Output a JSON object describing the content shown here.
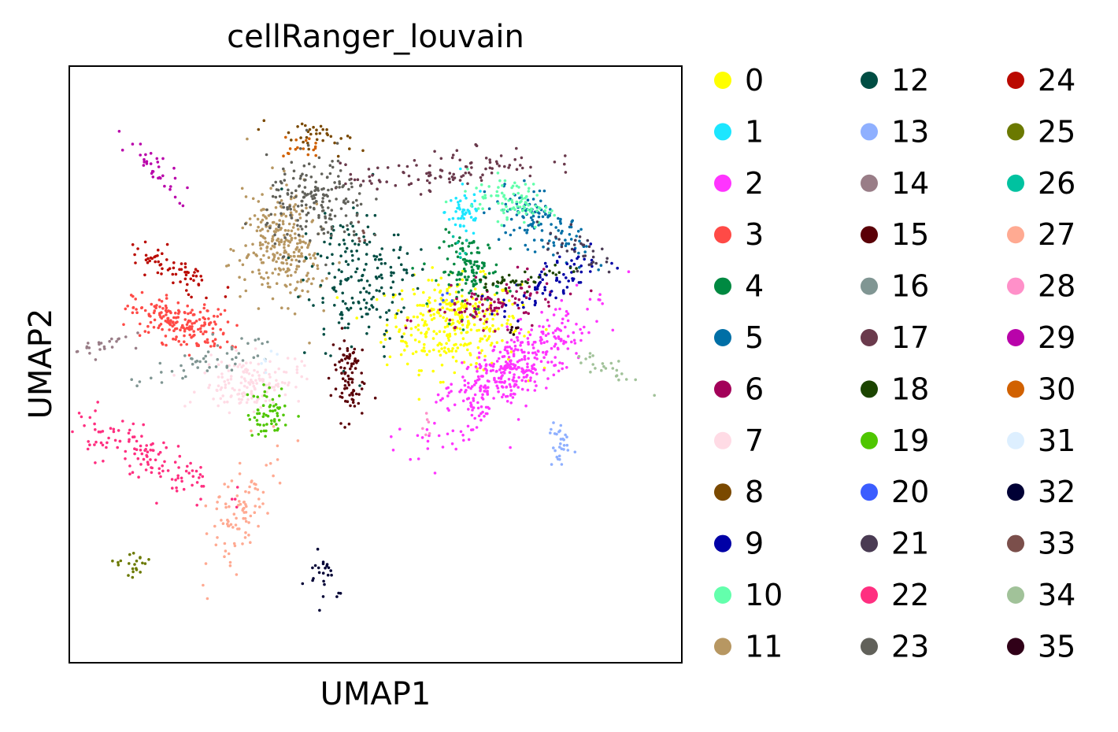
{
  "chart_data": {
    "type": "scatter",
    "title": "cellRanger_louvain",
    "xlabel": "UMAP1",
    "ylabel": "UMAP2",
    "xticks": false,
    "yticks": false,
    "grid": false,
    "legend_placement": "right, 3 columns",
    "categories": [
      "0",
      "1",
      "2",
      "3",
      "4",
      "5",
      "6",
      "7",
      "8",
      "9",
      "10",
      "11",
      "12",
      "13",
      "14",
      "15",
      "16",
      "17",
      "18",
      "19",
      "20",
      "21",
      "22",
      "23",
      "24",
      "25",
      "26",
      "27",
      "28",
      "29",
      "30",
      "31",
      "32",
      "33",
      "34",
      "35"
    ],
    "colors": [
      "#ffff00",
      "#1ce6ff",
      "#ff34ff",
      "#ff4a46",
      "#008941",
      "#006fa6",
      "#a30059",
      "#ffdbe5",
      "#7a4900",
      "#0000a6",
      "#63ffac",
      "#b79762",
      "#004d43",
      "#8fb0ff",
      "#997d87",
      "#5a0007",
      "#809693",
      "#6a3a4c",
      "#1b4400",
      "#4fc601",
      "#3b5dff",
      "#4a3b53",
      "#ff2f80",
      "#61615a",
      "#ba0900",
      "#6b7900",
      "#00c2a0",
      "#ffaa92",
      "#ff90c9",
      "#b903aa",
      "#d16100",
      "#ddefff",
      "#000035",
      "#7b4f4b",
      "#a1c299",
      "#300018"
    ],
    "clusters": [
      {
        "label": "0",
        "center": [
          5.8,
          -0.9
        ],
        "spread": [
          1.2,
          0.6
        ],
        "angle": 0,
        "weight": 0.8
      },
      {
        "label": "1",
        "center": [
          6.2,
          2.1
        ],
        "spread": [
          0.35,
          0.35
        ],
        "angle": 0,
        "weight": 0.12
      },
      {
        "label": "2",
        "center": [
          7.8,
          -2.2
        ],
        "spread": [
          1.6,
          0.45
        ],
        "angle": 28,
        "weight": 0.95
      },
      {
        "label": "3",
        "center": [
          -4.0,
          -0.9
        ],
        "spread": [
          0.9,
          0.3
        ],
        "angle": -10,
        "weight": 0.45
      },
      {
        "label": "4",
        "center": [
          6.4,
          0.5
        ],
        "spread": [
          0.55,
          0.5
        ],
        "angle": 0,
        "weight": 0.28
      },
      {
        "label": "5",
        "center": [
          8.9,
          1.8
        ],
        "spread": [
          0.9,
          0.35
        ],
        "angle": -25,
        "weight": 0.3
      },
      {
        "label": "6",
        "center": [
          7.2,
          -0.4
        ],
        "spread": [
          1.2,
          0.3
        ],
        "angle": 8,
        "weight": 0.25
      },
      {
        "label": "7",
        "center": [
          -1.5,
          -2.5
        ],
        "spread": [
          0.9,
          0.35
        ],
        "angle": 5,
        "weight": 0.35
      },
      {
        "label": "8",
        "center": [
          0.6,
          4.2
        ],
        "spread": [
          0.7,
          0.18
        ],
        "angle": -12,
        "weight": 0.08
      },
      {
        "label": "9",
        "center": [
          9.2,
          0.1
        ],
        "spread": [
          0.9,
          0.3
        ],
        "angle": 18,
        "weight": 0.18
      },
      {
        "label": "10",
        "center": [
          7.9,
          2.4
        ],
        "spread": [
          0.7,
          0.3
        ],
        "angle": -10,
        "weight": 0.22
      },
      {
        "label": "11",
        "center": [
          -0.3,
          1.2
        ],
        "spread": [
          0.8,
          0.75
        ],
        "angle": -35,
        "weight": 0.65
      },
      {
        "label": "12",
        "center": [
          2.4,
          0.3
        ],
        "spread": [
          0.9,
          0.9
        ],
        "angle": 20,
        "weight": 0.45
      },
      {
        "label": "13",
        "center": [
          9.6,
          -4.2
        ],
        "spread": [
          0.2,
          0.35
        ],
        "angle": 0,
        "weight": 0.07
      },
      {
        "label": "14",
        "center": [
          -7.0,
          -1.5
        ],
        "spread": [
          0.6,
          0.12
        ],
        "angle": 10,
        "weight": 0.06
      },
      {
        "label": "15",
        "center": [
          2.0,
          -2.3
        ],
        "spread": [
          0.3,
          0.6
        ],
        "angle": 0,
        "weight": 0.2
      },
      {
        "label": "16",
        "center": [
          -3.2,
          -2.0
        ],
        "spread": [
          1.4,
          0.2
        ],
        "angle": 12,
        "weight": 0.12
      },
      {
        "label": "17",
        "center": [
          5.5,
          3.2
        ],
        "spread": [
          1.8,
          0.25
        ],
        "angle": 5,
        "weight": 0.25
      },
      {
        "label": "18",
        "center": [
          8.3,
          0.3
        ],
        "spread": [
          1.1,
          0.12
        ],
        "angle": 8,
        "weight": 0.1
      },
      {
        "label": "19",
        "center": [
          -0.8,
          -3.3
        ],
        "spread": [
          0.4,
          0.35
        ],
        "angle": 0,
        "weight": 0.14
      },
      {
        "label": "20",
        "center": [
          5.5,
          -0.2
        ],
        "spread": [
          0.15,
          0.15
        ],
        "angle": 0,
        "weight": 0.01
      },
      {
        "label": "21",
        "center": [
          10.1,
          1.2
        ],
        "spread": [
          0.6,
          0.2
        ],
        "angle": -20,
        "weight": 0.08
      },
      {
        "label": "22",
        "center": [
          -5.3,
          -4.4
        ],
        "spread": [
          1.4,
          0.35
        ],
        "angle": -20,
        "weight": 0.3
      },
      {
        "label": "23",
        "center": [
          0.9,
          2.3
        ],
        "spread": [
          0.9,
          0.6
        ],
        "angle": 0,
        "weight": 0.45
      },
      {
        "label": "24",
        "center": [
          -4.3,
          0.5
        ],
        "spread": [
          0.9,
          0.25
        ],
        "angle": -15,
        "weight": 0.15
      },
      {
        "label": "25",
        "center": [
          -5.8,
          -7.3
        ],
        "spread": [
          0.4,
          0.2
        ],
        "angle": -30,
        "weight": 0.05
      },
      {
        "label": "26",
        "center": [
          6.0,
          1.0
        ],
        "spread": [
          0.2,
          0.2
        ],
        "angle": 0,
        "weight": 0.01
      },
      {
        "label": "27",
        "center": [
          -2.0,
          -6.0
        ],
        "spread": [
          0.9,
          0.4
        ],
        "angle": 55,
        "weight": 0.22
      },
      {
        "label": "28",
        "center": [
          5.0,
          -3.5
        ],
        "spread": [
          0.2,
          0.2
        ],
        "angle": 0,
        "weight": 0.01
      },
      {
        "label": "29",
        "center": [
          -4.9,
          3.2
        ],
        "spread": [
          0.6,
          0.2
        ],
        "angle": -40,
        "weight": 0.08
      },
      {
        "label": "30",
        "center": [
          0.5,
          3.8
        ],
        "spread": [
          0.45,
          0.15
        ],
        "angle": 0,
        "weight": 0.04
      },
      {
        "label": "31",
        "center": [
          -1.0,
          -2.0
        ],
        "spread": [
          0.2,
          0.2
        ],
        "angle": 0,
        "weight": 0.01
      },
      {
        "label": "32",
        "center": [
          1.1,
          -7.6
        ],
        "spread": [
          0.3,
          0.35
        ],
        "angle": 40,
        "weight": 0.06
      },
      {
        "label": "33",
        "center": [
          2.5,
          1.5
        ],
        "spread": [
          0.2,
          0.2
        ],
        "angle": 0,
        "weight": 0.01
      },
      {
        "label": "34",
        "center": [
          11.0,
          -2.0
        ],
        "spread": [
          0.8,
          0.12
        ],
        "angle": -20,
        "weight": 0.06
      },
      {
        "label": "35",
        "center": [
          8.0,
          -1.2
        ],
        "spread": [
          0.15,
          0.15
        ],
        "angle": 0,
        "weight": 0.01
      }
    ],
    "xlim": [
      -8,
      14
    ],
    "ylim": [
      -10,
      6
    ]
  }
}
